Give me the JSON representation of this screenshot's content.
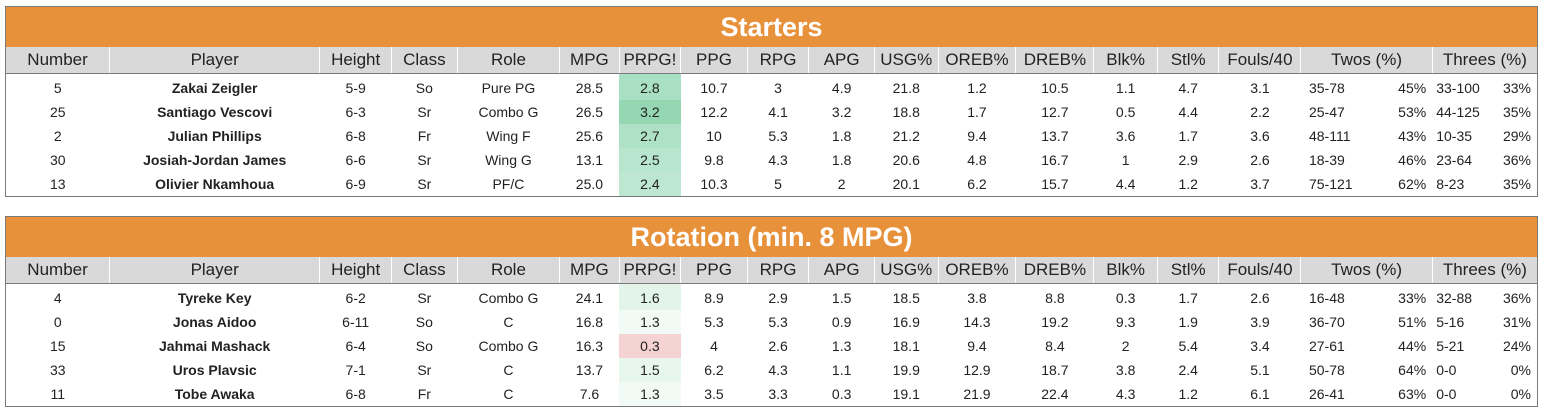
{
  "columns": [
    "Number",
    "Player",
    "Height",
    "Class",
    "Role",
    "MPG",
    "PRPG!",
    "PPG",
    "RPG",
    "APG",
    "USG%",
    "OREB%",
    "DREB%",
    "Blk%",
    "Stl%",
    "Fouls/40",
    "Twos (%)",
    "Threes (%)"
  ],
  "sections": [
    {
      "title": "Starters",
      "rows": [
        {
          "number": "5",
          "player": "Zakai Zeigler",
          "height": "5-9",
          "class": "So",
          "role": "Pure PG",
          "mpg": "28.5",
          "prpg": "2.8",
          "prpg_color": "#a9dfc3",
          "ppg": "10.7",
          "rpg": "3",
          "apg": "4.9",
          "usg": "21.8",
          "oreb": "1.2",
          "dreb": "10.5",
          "blk": "1.1",
          "stl": "4.7",
          "fouls": "3.1",
          "twos": "35-78",
          "twos_pct": "45%",
          "threes": "33-100",
          "threes_pct": "33%"
        },
        {
          "number": "25",
          "player": "Santiago Vescovi",
          "height": "6-3",
          "class": "Sr",
          "role": "Combo G",
          "mpg": "26.5",
          "prpg": "3.2",
          "prpg_color": "#95d6b3",
          "ppg": "12.2",
          "rpg": "4.1",
          "apg": "3.2",
          "usg": "18.8",
          "oreb": "1.7",
          "dreb": "12.7",
          "blk": "0.5",
          "stl": "4.4",
          "fouls": "2.2",
          "twos": "25-47",
          "twos_pct": "53%",
          "threes": "44-125",
          "threes_pct": "35%"
        },
        {
          "number": "2",
          "player": "Julian Phillips",
          "height": "6-8",
          "class": "Fr",
          "role": "Wing F",
          "mpg": "25.6",
          "prpg": "2.7",
          "prpg_color": "#aee1c6",
          "ppg": "10",
          "rpg": "5.3",
          "apg": "1.8",
          "usg": "21.2",
          "oreb": "9.4",
          "dreb": "13.7",
          "blk": "3.6",
          "stl": "1.7",
          "fouls": "3.6",
          "twos": "48-111",
          "twos_pct": "43%",
          "threes": "10-35",
          "threes_pct": "29%"
        },
        {
          "number": "30",
          "player": "Josiah-Jordan James",
          "height": "6-6",
          "class": "Sr",
          "role": "Wing G",
          "mpg": "13.1",
          "prpg": "2.5",
          "prpg_color": "#b8e5cd",
          "ppg": "9.8",
          "rpg": "4.3",
          "apg": "1.8",
          "usg": "20.6",
          "oreb": "4.8",
          "dreb": "16.7",
          "blk": "1",
          "stl": "2.9",
          "fouls": "2.6",
          "twos": "18-39",
          "twos_pct": "46%",
          "threes": "23-64",
          "threes_pct": "36%"
        },
        {
          "number": "13",
          "player": "Olivier Nkamhoua",
          "height": "6-9",
          "class": "Sr",
          "role": "PF/C",
          "mpg": "25.0",
          "prpg": "2.4",
          "prpg_color": "#bde7d1",
          "ppg": "10.3",
          "rpg": "5",
          "apg": "2",
          "usg": "20.1",
          "oreb": "6.2",
          "dreb": "15.7",
          "blk": "4.4",
          "stl": "1.2",
          "fouls": "3.7",
          "twos": "75-121",
          "twos_pct": "62%",
          "threes": "8-23",
          "threes_pct": "35%"
        }
      ]
    },
    {
      "title": "Rotation (min. 8 MPG)",
      "rows": [
        {
          "number": "4",
          "player": "Tyreke Key",
          "height": "6-2",
          "class": "Sr",
          "role": "Combo G",
          "mpg": "24.1",
          "prpg": "1.6",
          "prpg_color": "#e3f5eb",
          "ppg": "8.9",
          "rpg": "2.9",
          "apg": "1.5",
          "usg": "18.5",
          "oreb": "3.8",
          "dreb": "8.8",
          "blk": "0.3",
          "stl": "1.7",
          "fouls": "2.6",
          "twos": "16-48",
          "twos_pct": "33%",
          "threes": "32-88",
          "threes_pct": "36%"
        },
        {
          "number": "0",
          "player": "Jonas Aidoo",
          "height": "6-11",
          "class": "So",
          "role": "C",
          "mpg": "16.8",
          "prpg": "1.3",
          "prpg_color": "#f2faf5",
          "ppg": "5.3",
          "rpg": "5.3",
          "apg": "0.9",
          "usg": "16.9",
          "oreb": "14.3",
          "dreb": "19.2",
          "blk": "9.3",
          "stl": "1.9",
          "fouls": "3.9",
          "twos": "36-70",
          "twos_pct": "51%",
          "threes": "5-16",
          "threes_pct": "31%"
        },
        {
          "number": "15",
          "player": "Jahmai Mashack",
          "height": "6-4",
          "class": "So",
          "role": "Combo G",
          "mpg": "16.3",
          "prpg": "0.3",
          "prpg_color": "#f6d3d3",
          "ppg": "4",
          "rpg": "2.6",
          "apg": "1.3",
          "usg": "18.1",
          "oreb": "9.4",
          "dreb": "8.4",
          "blk": "2",
          "stl": "5.4",
          "fouls": "3.4",
          "twos": "27-61",
          "twos_pct": "44%",
          "threes": "5-21",
          "threes_pct": "24%"
        },
        {
          "number": "33",
          "player": "Uros Plavsic",
          "height": "7-1",
          "class": "Sr",
          "role": "C",
          "mpg": "13.7",
          "prpg": "1.5",
          "prpg_color": "#e8f7ee",
          "ppg": "6.2",
          "rpg": "4.3",
          "apg": "1.1",
          "usg": "19.9",
          "oreb": "12.9",
          "dreb": "18.7",
          "blk": "3.8",
          "stl": "2.4",
          "fouls": "5.1",
          "twos": "50-78",
          "twos_pct": "64%",
          "threes": "0-0",
          "threes_pct": "0%"
        },
        {
          "number": "11",
          "player": "Tobe Awaka",
          "height": "6-8",
          "class": "Fr",
          "role": "C",
          "mpg": "7.6",
          "prpg": "1.3",
          "prpg_color": "#f2faf5",
          "ppg": "3.5",
          "rpg": "3.3",
          "apg": "0.3",
          "usg": "19.1",
          "oreb": "21.9",
          "dreb": "22.4",
          "blk": "4.3",
          "stl": "1.2",
          "fouls": "6.1",
          "twos": "26-41",
          "twos_pct": "63%",
          "threes": "0-0",
          "threes_pct": "0%"
        }
      ]
    }
  ]
}
